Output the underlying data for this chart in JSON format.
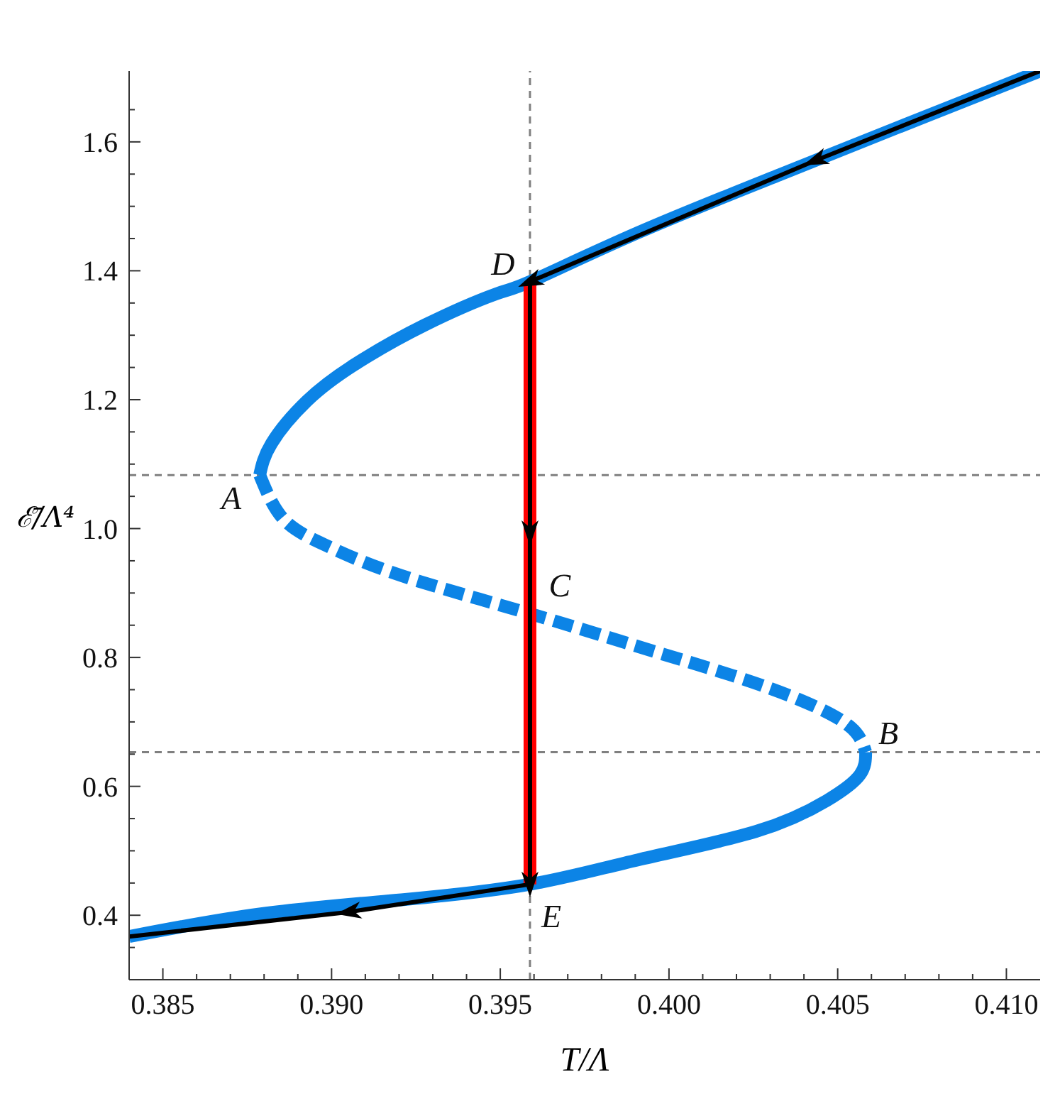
{
  "chart_data": {
    "type": "line",
    "xlabel": "T/Λ",
    "ylabel": "ℰ̄/Λ⁴",
    "xlim": [
      0.384,
      0.411
    ],
    "ylim": [
      0.3,
      1.71
    ],
    "xticks": [
      0.385,
      {
        "value": 0.386,
        "label": null
      },
      {
        "value": 0.387,
        "label": null
      },
      {
        "value": 0.388,
        "label": null
      },
      {
        "value": 0.389,
        "label": null
      },
      {
        "value": 0.39,
        "label": "0.390"
      },
      {
        "value": 0.391,
        "label": null
      },
      {
        "value": 0.392,
        "label": null
      },
      {
        "value": 0.393,
        "label": null
      },
      {
        "value": 0.394,
        "label": null
      },
      0.395,
      {
        "value": 0.396,
        "label": null
      },
      {
        "value": 0.397,
        "label": null
      },
      {
        "value": 0.398,
        "label": null
      },
      {
        "value": 0.399,
        "label": null
      },
      {
        "value": 0.4,
        "label": "0.400"
      },
      {
        "value": 0.401,
        "label": null
      },
      {
        "value": 0.402,
        "label": null
      },
      {
        "value": 0.403,
        "label": null
      },
      {
        "value": 0.404,
        "label": null
      },
      0.405,
      {
        "value": 0.406,
        "label": null
      },
      {
        "value": 0.407,
        "label": null
      },
      {
        "value": 0.408,
        "label": null
      },
      {
        "value": 0.409,
        "label": null
      },
      {
        "value": 0.41,
        "label": "0.410"
      }
    ],
    "yticks": [
      {
        "value": 0.35,
        "label": null
      },
      0.4,
      {
        "value": 0.45,
        "label": null
      },
      {
        "value": 0.5,
        "label": null
      },
      {
        "value": 0.55,
        "label": null
      },
      0.6,
      {
        "value": 0.65,
        "label": null
      },
      {
        "value": 0.7,
        "label": null
      },
      {
        "value": 0.75,
        "label": null
      },
      0.8,
      {
        "value": 0.85,
        "label": null
      },
      {
        "value": 0.9,
        "label": null
      },
      {
        "value": 0.95,
        "label": null
      },
      {
        "value": 1,
        "label": "1.0"
      },
      {
        "value": 1.05,
        "label": null
      },
      {
        "value": 1.1,
        "label": null
      },
      {
        "value": 1.15,
        "label": null
      },
      1.2,
      {
        "value": 1.25,
        "label": null
      },
      {
        "value": 1.3,
        "label": null
      },
      {
        "value": 1.35,
        "label": null
      },
      1.4,
      {
        "value": 1.45,
        "label": null
      },
      {
        "value": 1.5,
        "label": null
      },
      {
        "value": 1.55,
        "label": null
      },
      1.6,
      {
        "value": 1.65,
        "label": null
      }
    ],
    "series": [
      {
        "color": "#0c84e6",
        "line_style": "solid",
        "x": [
          0.38787,
          0.38822,
          0.38927,
          0.39067,
          0.39277,
          0.39487,
          0.39588,
          0.39908,
          0.40328,
          0.40748,
          0.411
        ],
        "values": [
          1.083,
          1.132,
          1.198,
          1.254,
          1.316,
          1.364,
          1.383,
          1.459,
          1.549,
          1.637,
          1.71
        ]
      },
      {
        "color": "#0c84e6",
        "line_style": "dashed",
        "x": [
          0.38787,
          0.38857,
          0.38983,
          0.39207,
          0.39588,
          0.39908,
          0.40188,
          0.40398,
          0.40538,
          0.40583
        ],
        "values": [
          1.083,
          1.015,
          0.974,
          0.927,
          0.868,
          0.817,
          0.772,
          0.732,
          0.692,
          0.653
        ]
      },
      {
        "color": "#0c84e6",
        "line_style": "solid",
        "x": [
          0.40583,
          0.40566,
          0.40468,
          0.40258,
          0.39908,
          0.39588,
          0.39207,
          0.38787,
          0.384
        ],
        "values": [
          0.653,
          0.618,
          0.578,
          0.53,
          0.486,
          0.448,
          0.424,
          0.402,
          0.367
        ]
      },
      {
        "color": "#ff0000",
        "line_style": "solid",
        "x": [
          0.39588,
          0.39588
        ],
        "values": [
          1.383,
          0.448
        ]
      },
      {
        "color": "#000000",
        "line_style": "solid",
        "x": [
          0.411,
          0.40433,
          0.39588,
          0.39588,
          0.39588,
          0.3905,
          0.384
        ],
        "values": [
          1.71,
          1.571,
          1.383,
          0.993,
          0.448,
          0.405,
          0.367
        ]
      }
    ],
    "ref_lines": [
      {
        "axis": "x",
        "value": 0.39588,
        "color": "#808080",
        "line_style": "dashed"
      },
      {
        "axis": "y",
        "value": 1.083,
        "color": "#808080",
        "line_style": "dashed"
      },
      {
        "axis": "y",
        "value": 0.653,
        "color": "#808080",
        "line_style": "dashed"
      }
    ],
    "annotations": [
      {
        "text": "A",
        "x": 0.38787,
        "y": 1.083
      },
      {
        "text": "B",
        "x": 0.40583,
        "y": 0.653
      },
      {
        "text": "C",
        "x": 0.39588,
        "y": 0.868
      },
      {
        "text": "D",
        "x": 0.39588,
        "y": 1.383
      },
      {
        "text": "E",
        "x": 0.39588,
        "y": 0.448
      }
    ]
  }
}
